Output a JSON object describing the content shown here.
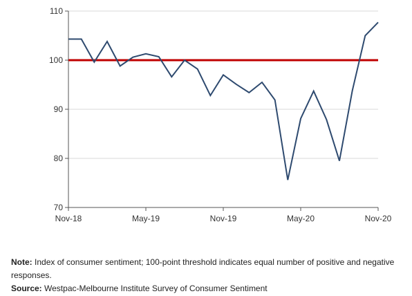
{
  "chart_data": {
    "type": "line",
    "title": "",
    "xlabel": "",
    "ylabel": "",
    "ylim": [
      70,
      110
    ],
    "yticks": [
      70,
      80,
      90,
      100,
      110
    ],
    "xtick_labels": [
      "Nov-18",
      "May-19",
      "Nov-19",
      "May-20",
      "Nov-20"
    ],
    "x": [
      "Nov-18",
      "Dec-18",
      "Jan-19",
      "Feb-19",
      "Mar-19",
      "Apr-19",
      "May-19",
      "Jun-19",
      "Jul-19",
      "Aug-19",
      "Sep-19",
      "Oct-19",
      "Nov-19",
      "Dec-19",
      "Jan-20",
      "Feb-20",
      "Mar-20",
      "Apr-20",
      "May-20",
      "Jun-20",
      "Jul-20",
      "Aug-20",
      "Sep-20",
      "Oct-20",
      "Nov-20"
    ],
    "series": [
      {
        "values": [
          104.3,
          104.3,
          99.6,
          103.8,
          98.8,
          100.6,
          101.3,
          100.7,
          96.6,
          100.0,
          98.2,
          92.8,
          97.0,
          95.1,
          93.4,
          95.5,
          91.9,
          75.6,
          88.1,
          93.7,
          87.9,
          79.5,
          93.8,
          105.0,
          107.7
        ],
        "color": "#2e4a6f"
      }
    ],
    "reference_line": {
      "value": 100,
      "color": "#c00000"
    },
    "grid": "horizontal"
  },
  "notes": {
    "note_label": "Note:",
    "note_text": " Index of consumer sentiment; 100-point threshold indicates equal number of positive and negative responses.",
    "source_label": "Source:",
    "source_text": " Westpac-Melbourne Institute Survey of Consumer Sentiment"
  }
}
